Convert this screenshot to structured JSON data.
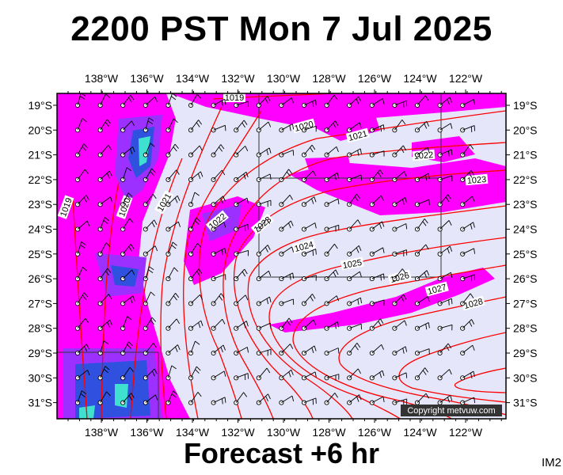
{
  "header": {
    "title": "2200 PST Mon 7 Jul 2025"
  },
  "footer": {
    "subtitle": "Forecast +6 hr",
    "tag": "IM2",
    "copyright": "Copyright metvuw.com"
  },
  "map": {
    "lon_ticks": [
      "138°W",
      "136°W",
      "134°W",
      "132°W",
      "130°W",
      "128°W",
      "126°W",
      "124°W",
      "122°W"
    ],
    "lat_ticks": [
      "19°S",
      "20°S",
      "21°S",
      "22°S",
      "23°S",
      "24°S",
      "25°S",
      "26°S",
      "27°S",
      "28°S",
      "29°S",
      "30°S",
      "31°S"
    ],
    "isobar_labels": [
      "1019",
      "1019",
      "1020",
      "1021",
      "1020",
      "1021",
      "1022",
      "1022",
      "1023",
      "1023",
      "1024",
      "1025",
      "1026",
      "1027",
      "1028"
    ],
    "colors": {
      "background": "#e6e6fa",
      "precip_light": "#ff00ff",
      "precip_mid": "#9b30ff",
      "precip_heavy": "#3050e0",
      "precip_peak": "#40e0d0",
      "isobar": "#ff0000"
    }
  }
}
